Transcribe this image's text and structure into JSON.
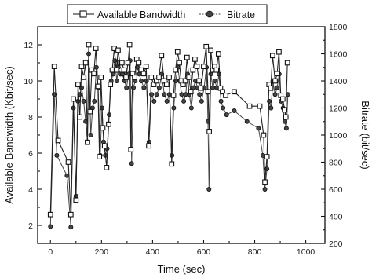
{
  "chart_data": {
    "type": "line",
    "xlabel": "Time (sec)",
    "ylabel": "Available Bandwidth (Kbit/sec)",
    "y2label": "Bitrate (bit/sec)",
    "xlim": [
      -50,
      1075
    ],
    "ylim": [
      1,
      13
    ],
    "y2lim": [
      200,
      1800
    ],
    "x_ticks": [
      0,
      200,
      400,
      600,
      800,
      1000
    ],
    "y_ticks": [
      2,
      4,
      6,
      8,
      10,
      12
    ],
    "y2_ticks": [
      200,
      400,
      600,
      800,
      1000,
      1200,
      1400,
      1600,
      1800
    ],
    "legend_position": "top",
    "series": [
      {
        "name": "Available Bandwidth",
        "axis": "left",
        "marker": "square-open",
        "points": [
          [
            0,
            2.6
          ],
          [
            15,
            10.8
          ],
          [
            30,
            6.7
          ],
          [
            70,
            5.5
          ],
          [
            80,
            2.6
          ],
          [
            90,
            9.0
          ],
          [
            100,
            3.4
          ],
          [
            108,
            9.8
          ],
          [
            115,
            8.0
          ],
          [
            122,
            10.8
          ],
          [
            130,
            10.2
          ],
          [
            138,
            11.0
          ],
          [
            145,
            6.6
          ],
          [
            150,
            12.0
          ],
          [
            155,
            8.3
          ],
          [
            162,
            10.6
          ],
          [
            170,
            10.4
          ],
          [
            178,
            11.8
          ],
          [
            186,
            9.7
          ],
          [
            192,
            5.8
          ],
          [
            198,
            10.2
          ],
          [
            205,
            7.4
          ],
          [
            212,
            6.4
          ],
          [
            220,
            5.2
          ],
          [
            228,
            7.6
          ],
          [
            235,
            9.8
          ],
          [
            242,
            10.6
          ],
          [
            250,
            11.8
          ],
          [
            258,
            10.6
          ],
          [
            265,
            11.7
          ],
          [
            272,
            11.0
          ],
          [
            280,
            11.0
          ],
          [
            288,
            10.6
          ],
          [
            296,
            10.2
          ],
          [
            304,
            11.0
          ],
          [
            310,
            12.0
          ],
          [
            315,
            6.2
          ],
          [
            322,
            10.4
          ],
          [
            330,
            10.2
          ],
          [
            338,
            11.2
          ],
          [
            346,
            11.0
          ],
          [
            355,
            10.6
          ],
          [
            365,
            10.4
          ],
          [
            375,
            10.8
          ],
          [
            385,
            6.4
          ],
          [
            395,
            10.2
          ],
          [
            405,
            9.8
          ],
          [
            415,
            10.0
          ],
          [
            425,
            10.2
          ],
          [
            435,
            11.4
          ],
          [
            445,
            10.0
          ],
          [
            455,
            9.8
          ],
          [
            465,
            10.2
          ],
          [
            475,
            5.4
          ],
          [
            482,
            9.2
          ],
          [
            490,
            10.6
          ],
          [
            498,
            11.6
          ],
          [
            505,
            11.0
          ],
          [
            512,
            10.0
          ],
          [
            520,
            9.8
          ],
          [
            528,
            10.0
          ],
          [
            535,
            11.3
          ],
          [
            542,
            10.2
          ],
          [
            550,
            9.4
          ],
          [
            558,
            10.6
          ],
          [
            566,
            11.2
          ],
          [
            574,
            10.8
          ],
          [
            582,
            10.0
          ],
          [
            590,
            9.6
          ],
          [
            600,
            10.8
          ],
          [
            610,
            11.9
          ],
          [
            617,
            9.4
          ],
          [
            622,
            7.2
          ],
          [
            628,
            11.7
          ],
          [
            636,
            10.6
          ],
          [
            643,
            10.8
          ],
          [
            650,
            10.6
          ],
          [
            658,
            11.5
          ],
          [
            666,
            9.6
          ],
          [
            674,
            9.4
          ],
          [
            686,
            9.2
          ],
          [
            720,
            9.4
          ],
          [
            780,
            8.6
          ],
          [
            820,
            8.6
          ],
          [
            835,
            7.0
          ],
          [
            840,
            4.4
          ],
          [
            848,
            5.8
          ],
          [
            856,
            9.8
          ],
          [
            863,
            9.6
          ],
          [
            870,
            11.4
          ],
          [
            880,
            10.0
          ],
          [
            888,
            10.4
          ],
          [
            895,
            11.6
          ],
          [
            902,
            9.2
          ],
          [
            910,
            9.0
          ],
          [
            917,
            8.4
          ],
          [
            922,
            8.0
          ],
          [
            928,
            11.0
          ]
        ]
      },
      {
        "name": "Bitrate",
        "axis": "right",
        "marker": "circle-filled",
        "points": [
          [
            0,
            325
          ],
          [
            15,
            1300
          ],
          [
            25,
            850
          ],
          [
            65,
            700
          ],
          [
            80,
            320
          ],
          [
            90,
            1200
          ],
          [
            100,
            550
          ],
          [
            108,
            1250
          ],
          [
            115,
            1300
          ],
          [
            122,
            1350
          ],
          [
            130,
            1250
          ],
          [
            138,
            1100
          ],
          [
            145,
            950
          ],
          [
            150,
            1600
          ],
          [
            158,
            1000
          ],
          [
            165,
            1200
          ],
          [
            172,
            1250
          ],
          [
            180,
            1500
          ],
          [
            187,
            1350
          ],
          [
            195,
            850
          ],
          [
            202,
            1200
          ],
          [
            208,
            950
          ],
          [
            215,
            850
          ],
          [
            222,
            900
          ],
          [
            230,
            1150
          ],
          [
            238,
            1400
          ],
          [
            245,
            1450
          ],
          [
            252,
            1550
          ],
          [
            260,
            1400
          ],
          [
            266,
            1500
          ],
          [
            274,
            1450
          ],
          [
            282,
            1450
          ],
          [
            290,
            1400
          ],
          [
            298,
            1350
          ],
          [
            306,
            1450
          ],
          [
            312,
            1550
          ],
          [
            318,
            790
          ],
          [
            325,
            1350
          ],
          [
            332,
            1400
          ],
          [
            340,
            1500
          ],
          [
            348,
            1450
          ],
          [
            356,
            1400
          ],
          [
            366,
            1350
          ],
          [
            376,
            1400
          ],
          [
            386,
            950
          ],
          [
            396,
            1300
          ],
          [
            406,
            1250
          ],
          [
            416,
            1300
          ],
          [
            426,
            1350
          ],
          [
            436,
            1450
          ],
          [
            446,
            1300
          ],
          [
            456,
            1250
          ],
          [
            466,
            1300
          ],
          [
            476,
            850
          ],
          [
            483,
            1200
          ],
          [
            491,
            1400
          ],
          [
            499,
            1500
          ],
          [
            506,
            1400
          ],
          [
            514,
            1300
          ],
          [
            522,
            1250
          ],
          [
            530,
            1300
          ],
          [
            537,
            1450
          ],
          [
            544,
            1300
          ],
          [
            552,
            1200
          ],
          [
            560,
            1350
          ],
          [
            568,
            1400
          ],
          [
            576,
            1350
          ],
          [
            584,
            1300
          ],
          [
            592,
            1250
          ],
          [
            602,
            1350
          ],
          [
            611,
            1500
          ],
          [
            617,
            1100
          ],
          [
            621,
            600
          ],
          [
            628,
            1450
          ],
          [
            636,
            1350
          ],
          [
            644,
            1400
          ],
          [
            652,
            1350
          ],
          [
            660,
            1450
          ],
          [
            668,
            1250
          ],
          [
            676,
            1200
          ],
          [
            690,
            1150
          ],
          [
            720,
            1180
          ],
          [
            770,
            1100
          ],
          [
            815,
            1050
          ],
          [
            832,
            850
          ],
          [
            840,
            600
          ],
          [
            848,
            750
          ],
          [
            857,
            1250
          ],
          [
            864,
            1200
          ],
          [
            871,
            1400
          ],
          [
            880,
            1300
          ],
          [
            888,
            1350
          ],
          [
            896,
            1450
          ],
          [
            903,
            1250
          ],
          [
            911,
            1200
          ],
          [
            918,
            1100
          ],
          [
            924,
            1050
          ],
          [
            930,
            1300
          ]
        ]
      }
    ]
  }
}
